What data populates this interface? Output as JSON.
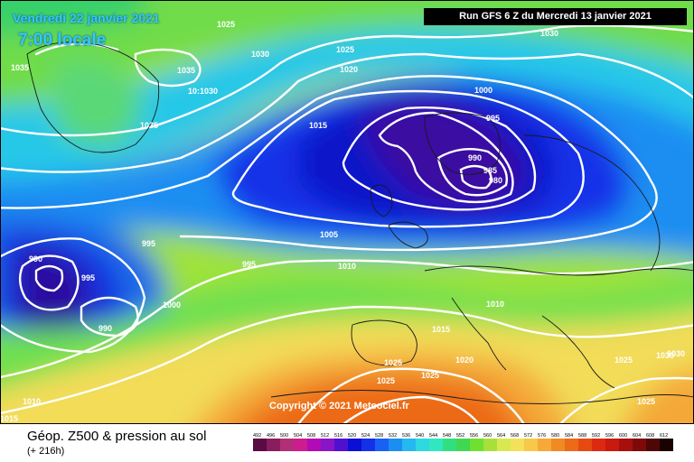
{
  "header": {
    "date_line": "Vendredi 22 janvier 2021",
    "time_line": "7:00 locale",
    "run_info": "Run GFS 6 Z du Mercredi 13 janvier 2021"
  },
  "map": {
    "copyright": "Copyright © 2021 Meteociel.fr",
    "isobar_labels": [
      "1030",
      "1025",
      "1035",
      "1030",
      "1035",
      "10:1030",
      "1035",
      "1025",
      "1020",
      "1000",
      "995",
      "990",
      "985",
      "980",
      "1015",
      "1005",
      "1010",
      "995",
      "990",
      "995",
      "990",
      "1000",
      "995",
      "1030",
      "1010",
      "1015",
      "1020",
      "1025",
      "1025",
      "1025",
      "1010",
      "1015",
      "1030",
      "1025",
      "1025"
    ],
    "lows": [
      "985",
      "980"
    ],
    "colors": {
      "isobars": "#ffffff",
      "deep_low": "#6b1f4a",
      "trough": "#0b1fb8",
      "ridge": "#f07a14",
      "midlatitude": "#b8e040"
    }
  },
  "footer": {
    "title": "Géop. Z500 & pression au sol",
    "subtitle": "(+ 216h)"
  },
  "legend": {
    "values": [
      "492",
      "496",
      "500",
      "504",
      "508",
      "512",
      "516",
      "520",
      "524",
      "528",
      "532",
      "536",
      "540",
      "544",
      "548",
      "552",
      "556",
      "560",
      "564",
      "568",
      "572",
      "576",
      "580",
      "584",
      "588",
      "592",
      "596",
      "600",
      "604",
      "608",
      "612"
    ],
    "colors": [
      "#5b0a43",
      "#8a1d5b",
      "#b22f77",
      "#cc1c8e",
      "#b20bb6",
      "#8c14c8",
      "#5010d0",
      "#0b0fd6",
      "#1431e8",
      "#1960f4",
      "#1c8ef2",
      "#26b8f0",
      "#2ed8e0",
      "#30e8c0",
      "#30e080",
      "#40d850",
      "#70e030",
      "#a8e03a",
      "#d8e850",
      "#f4e05a",
      "#f8c848",
      "#f8a838",
      "#f08a22",
      "#ec6a18",
      "#e64a12",
      "#dc2a10",
      "#c81a0e",
      "#a80f0c",
      "#7e0a08",
      "#4e0606",
      "#1a0202"
    ]
  }
}
